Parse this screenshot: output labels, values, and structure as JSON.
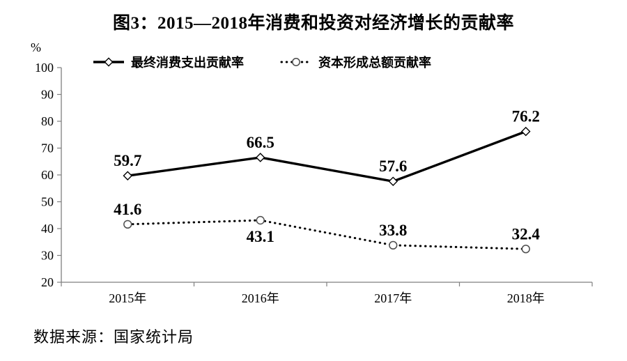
{
  "title": "图3：2015—2018年消费和投资对经济增长的贡献率",
  "source_note": "数据来源：国家统计局",
  "chart_data": {
    "type": "line",
    "title": "图3：2015—2018年消费和投资对经济增长的贡献率",
    "unit_label": "%",
    "categories": [
      "2015年",
      "2016年",
      "2017年",
      "2018年"
    ],
    "series": [
      {
        "id": "consumption-series",
        "name": "最终消费支出贡献率",
        "style": "solid",
        "marker": "diamond",
        "values": [
          59.7,
          66.5,
          57.6,
          76.2
        ],
        "label_positions": [
          "above",
          "above",
          "above",
          "above"
        ]
      },
      {
        "id": "capital-series",
        "name": "资本形成总额贡献率",
        "style": "dotted",
        "marker": "circle",
        "values": [
          41.6,
          43.1,
          33.8,
          32.4
        ],
        "label_positions": [
          "above",
          "below",
          "above",
          "above"
        ]
      }
    ],
    "ylim": [
      20,
      100
    ],
    "yticks": [
      20,
      30,
      40,
      50,
      60,
      70,
      80,
      90,
      100
    ],
    "grid": false,
    "legend_position": "top",
    "colors": {
      "line": "#000000",
      "axis": "#7f7f7f",
      "marker_fill": "#ffffff",
      "circle_stroke": "#4d4d4d",
      "text": "#000000"
    }
  }
}
